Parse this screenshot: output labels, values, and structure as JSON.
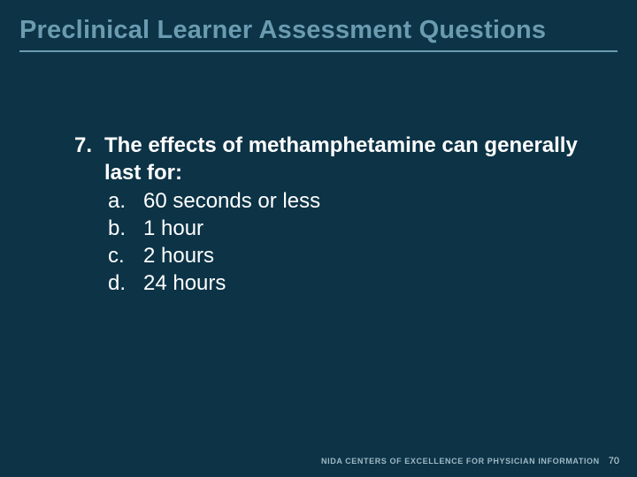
{
  "background_color": "#0c3346",
  "title_color": "#6b9bb0",
  "text_color": "#ffffff",
  "footer_text_color": "#9fb9c5",
  "title": "Preclinical Learner Assessment Questions",
  "question": {
    "number": "7.",
    "stem": "The effects of methamphetamine can generally last for:",
    "answers": [
      {
        "label": "a.",
        "text": "60 seconds or less"
      },
      {
        "label": "b.",
        "text": "1 hour"
      },
      {
        "label": "c.",
        "text": "2 hours"
      },
      {
        "label": "d.",
        "text": "24 hours"
      }
    ]
  },
  "footer": {
    "org_text": "NIDA CENTERS OF EXCELLENCE FOR PHYSICIAN INFORMATION",
    "page_number": "70"
  }
}
